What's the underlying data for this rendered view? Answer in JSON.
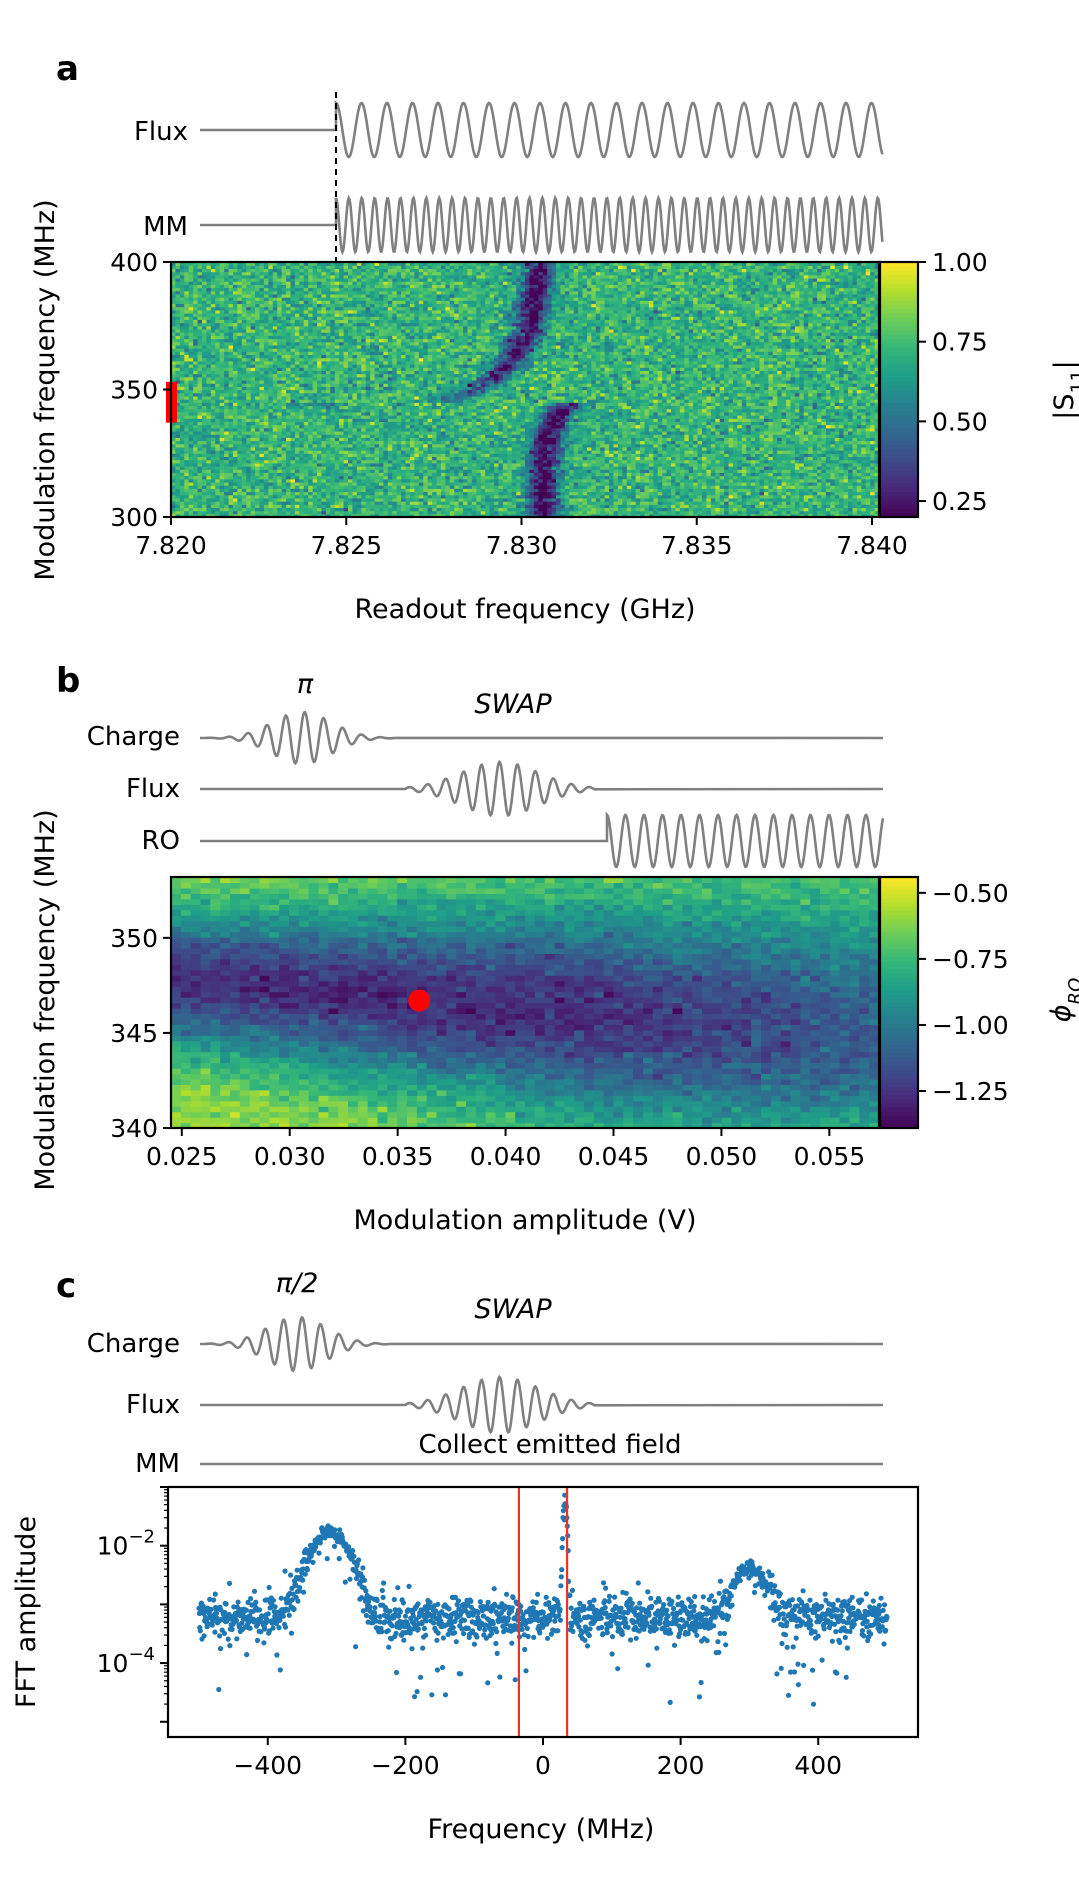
{
  "panels": {
    "a": {
      "letter": "a"
    },
    "b": {
      "letter": "b"
    },
    "c": {
      "letter": "c"
    }
  },
  "pulse_labels": {
    "a": [
      "Flux",
      "MM"
    ],
    "b": [
      "Charge",
      "Flux",
      "RO"
    ],
    "c": [
      "Charge",
      "Flux",
      "MM"
    ]
  },
  "annotations": {
    "b_pi": "π",
    "b_swap": "SWAP",
    "c_pi2": "π/2",
    "c_swap": "SWAP",
    "c_collect": "Collect emitted field"
  },
  "colors": {
    "pulse": "#808080",
    "marker": "#ff0000",
    "scatter": "#1f77b4",
    "vline": "#e8332a"
  },
  "chart_data": [
    {
      "type": "heatmap",
      "panel": "a",
      "xlabel": "Readout frequency (GHz)",
      "ylabel": "Modulation frequency (MHz)",
      "xlim": [
        7.82,
        7.8402
      ],
      "ylim": [
        300,
        400
      ],
      "xticks": [
        "7.820",
        "7.825",
        "7.830",
        "7.835",
        "7.840"
      ],
      "xtick_values": [
        7.82,
        7.825,
        7.83,
        7.835,
        7.84
      ],
      "yticks": [
        "300",
        "350",
        "400"
      ],
      "ytick_values": [
        300,
        350,
        400
      ],
      "colorbar": {
        "label": "|S11|",
        "range": [
          0.2,
          1.0
        ],
        "ticks": [
          "0.25",
          "0.50",
          "0.75",
          "1.00"
        ],
        "tick_values": [
          0.25,
          0.5,
          0.75,
          1.0
        ],
        "colormap": "viridis"
      },
      "features": {
        "resonance_center_GHz": 7.8306,
        "avoided_crossing_MHz": 345,
        "background_level": 0.72,
        "dip_level": 0.2
      },
      "marker": {
        "y_range_MHz": [
          337,
          353
        ],
        "x_GHz": 7.82
      }
    },
    {
      "type": "heatmap",
      "panel": "b",
      "xlabel": "Modulation amplitude (V)",
      "ylabel": "Modulation frequency (MHz)",
      "xlim": [
        0.0245,
        0.0573
      ],
      "ylim": [
        340,
        353.2
      ],
      "xticks": [
        "0.025",
        "0.030",
        "0.035",
        "0.040",
        "0.045",
        "0.050",
        "0.055"
      ],
      "xtick_values": [
        0.025,
        0.03,
        0.035,
        0.04,
        0.045,
        0.05,
        0.055
      ],
      "yticks": [
        "340",
        "345",
        "350"
      ],
      "ytick_values": [
        340,
        345,
        350
      ],
      "colorbar": {
        "label": "φRO",
        "range": [
          -1.39,
          -0.44
        ],
        "ticks": [
          "−1.25",
          "−1.00",
          "−0.75",
          "−0.50"
        ],
        "tick_values": [
          -1.25,
          -1.0,
          -0.75,
          -0.5
        ],
        "colormap": "viridis"
      },
      "optimum": {
        "x": 0.036,
        "y": 346.7
      }
    },
    {
      "type": "scatter",
      "panel": "c",
      "xlabel": "Frequency (MHz)",
      "ylabel": "FFT amplitude",
      "xlim": [
        -545,
        545
      ],
      "yscale": "log",
      "ylim": [
        5.5e-06,
        0.1
      ],
      "xticks": [
        "−400",
        "−200",
        "0",
        "200",
        "400"
      ],
      "xtick_values": [
        -400,
        -200,
        0,
        200,
        400
      ],
      "yticks": [
        "10−2",
        "10−4"
      ],
      "ytick_values": [
        0.01,
        0.0001
      ],
      "x_range": [
        -500,
        500
      ],
      "noise_floor": 0.0006,
      "peaks": [
        {
          "x": -310,
          "amplitude": 0.016,
          "width": 30
        },
        {
          "x": 300,
          "amplitude": 0.0035,
          "width": 25
        },
        {
          "x": 32,
          "amplitude": 0.07,
          "width": 3
        }
      ],
      "vlines": [
        -35,
        35
      ]
    }
  ]
}
